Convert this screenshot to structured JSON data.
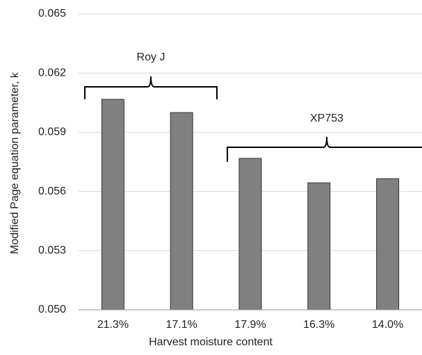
{
  "chart_data": {
    "type": "bar",
    "x_label": "Harvest moisture content",
    "y_label": "Modified Page equation parameter, k",
    "categories": [
      "21.3%",
      "17.1%",
      "17.9%",
      "16.3%",
      "14.0%"
    ],
    "values": [
      0.06067,
      0.06,
      0.05768,
      0.05644,
      0.05665
    ],
    "color": "#808080",
    "ylim": [
      0.05,
      0.065
    ],
    "yticks": [
      {
        "value": 0.05,
        "label": "0.050"
      },
      0.053,
      0.056,
      0.059,
      0.062,
      0.065
    ],
    "grid": true,
    "annotations": [
      "Roy J",
      "XP753"
    ]
  }
}
